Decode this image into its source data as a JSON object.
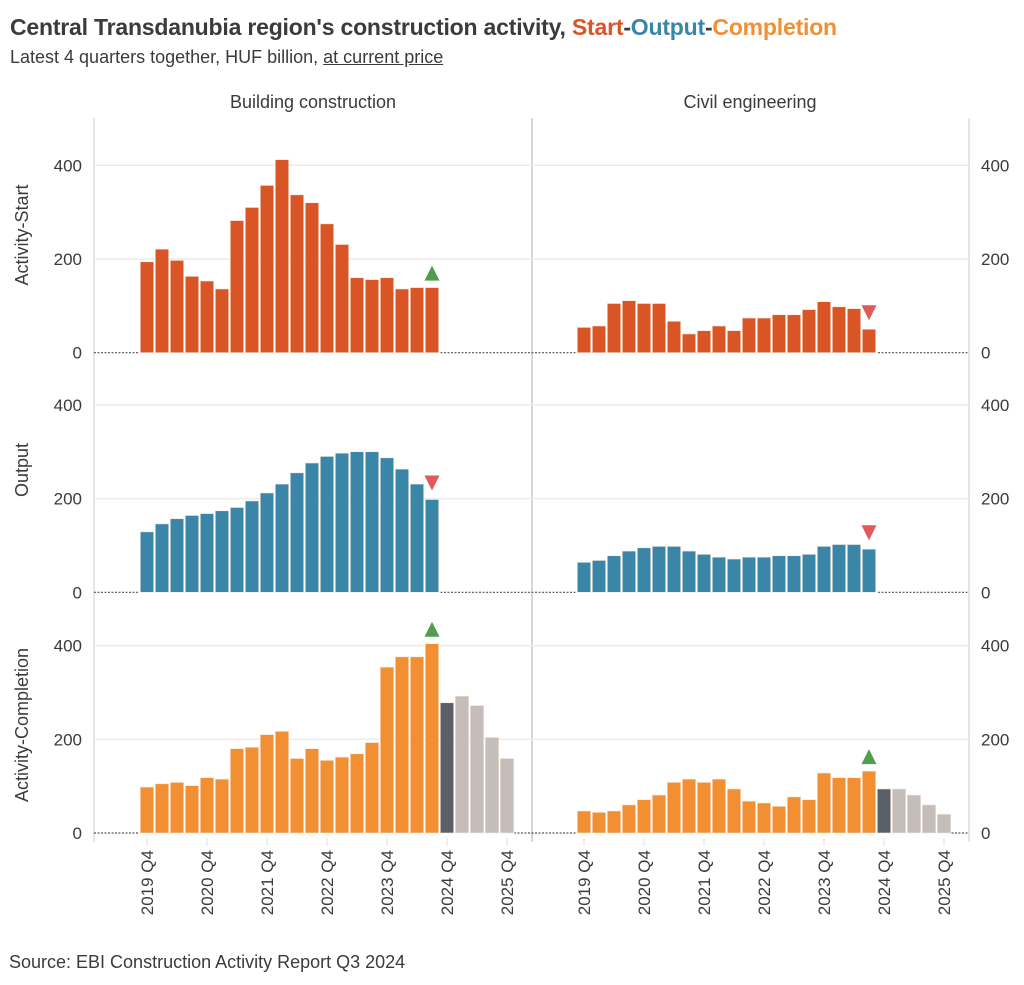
{
  "title": {
    "prefix": "Central Transdanubia region's construction activity, ",
    "start": "Start",
    "sep1": "-",
    "output": "Output",
    "sep2": "-",
    "completion": "Completion"
  },
  "subtitle": {
    "prefix": "Latest 4 quarters together, HUF billion, ",
    "link": "at current price"
  },
  "source": "Source: EBI Construction Activity Report Q3 2024",
  "colors": {
    "start": "#d95525",
    "output": "#3a86a8",
    "completion": "#f28f33",
    "forecast_current": "#5b5f67",
    "forecast": "#c4bdb9",
    "up_marker": "#4f9e4f",
    "down_marker": "#e05a5a"
  },
  "chart_data": {
    "type": "bar",
    "facet_columns": [
      "Building construction",
      "Civil engineering"
    ],
    "facet_rows": [
      "Activity-Start",
      "Output",
      "Activity-Completion"
    ],
    "x": [
      "2019 Q4",
      "2020 Q1",
      "2020 Q2",
      "2020 Q3",
      "2020 Q4",
      "2021 Q1",
      "2021 Q2",
      "2021 Q3",
      "2021 Q4",
      "2022 Q1",
      "2022 Q2",
      "2022 Q3",
      "2022 Q4",
      "2023 Q1",
      "2023 Q2",
      "2023 Q3",
      "2023 Q4",
      "2024 Q1",
      "2024 Q2",
      "2024 Q3",
      "2024 Q4",
      "2025 Q1",
      "2025 Q2",
      "2025 Q3",
      "2025 Q4"
    ],
    "x_tick_labels": [
      "2019 Q4",
      "2020 Q4",
      "2021 Q4",
      "2022 Q4",
      "2023 Q4",
      "2024 Q4",
      "2025 Q4"
    ],
    "y_ticks": [
      0,
      200,
      400
    ],
    "ylim": [
      0,
      500
    ],
    "grid": true,
    "panels": [
      {
        "column": "Building construction",
        "row": "Activity-Start",
        "values": [
          194,
          221,
          197,
          163,
          153,
          136,
          282,
          310,
          357,
          412,
          337,
          320,
          275,
          231,
          160,
          156,
          160,
          136,
          139,
          139
        ],
        "forecast_current": null,
        "forecast": [],
        "trend": "up"
      },
      {
        "column": "Civil engineering",
        "row": "Activity-Start",
        "values": [
          54,
          57,
          105,
          111,
          105,
          105,
          67,
          40,
          47,
          57,
          47,
          74,
          74,
          81,
          81,
          92,
          109,
          98,
          94,
          50
        ],
        "forecast_current": null,
        "forecast": [],
        "trend": "down"
      },
      {
        "column": "Building construction",
        "row": "Output",
        "values": [
          129,
          146,
          157,
          164,
          168,
          174,
          181,
          195,
          212,
          231,
          255,
          276,
          290,
          297,
          300,
          300,
          287,
          263,
          231,
          198
        ],
        "forecast_current": null,
        "forecast": [],
        "trend": "down"
      },
      {
        "column": "Civil engineering",
        "row": "Output",
        "values": [
          64,
          68,
          78,
          88,
          95,
          98,
          98,
          88,
          81,
          75,
          71,
          75,
          75,
          78,
          78,
          81,
          98,
          102,
          102,
          92
        ],
        "forecast_current": null,
        "forecast": [],
        "trend": "down"
      },
      {
        "column": "Building construction",
        "row": "Activity-Completion",
        "values": [
          98,
          105,
          108,
          101,
          118,
          115,
          180,
          183,
          210,
          217,
          159,
          180,
          155,
          162,
          169,
          193,
          354,
          376,
          376,
          404
        ],
        "forecast_current": 278,
        "forecast": [
          292,
          272,
          204,
          159
        ],
        "trend": "up"
      },
      {
        "column": "Civil engineering",
        "row": "Activity-Completion",
        "values": [
          47,
          44,
          47,
          60,
          71,
          81,
          108,
          115,
          108,
          115,
          94,
          68,
          64,
          57,
          77,
          71,
          128,
          118,
          118,
          132
        ],
        "forecast_current": 94,
        "forecast": [
          94,
          81,
          60,
          40
        ],
        "trend": "up"
      }
    ]
  }
}
